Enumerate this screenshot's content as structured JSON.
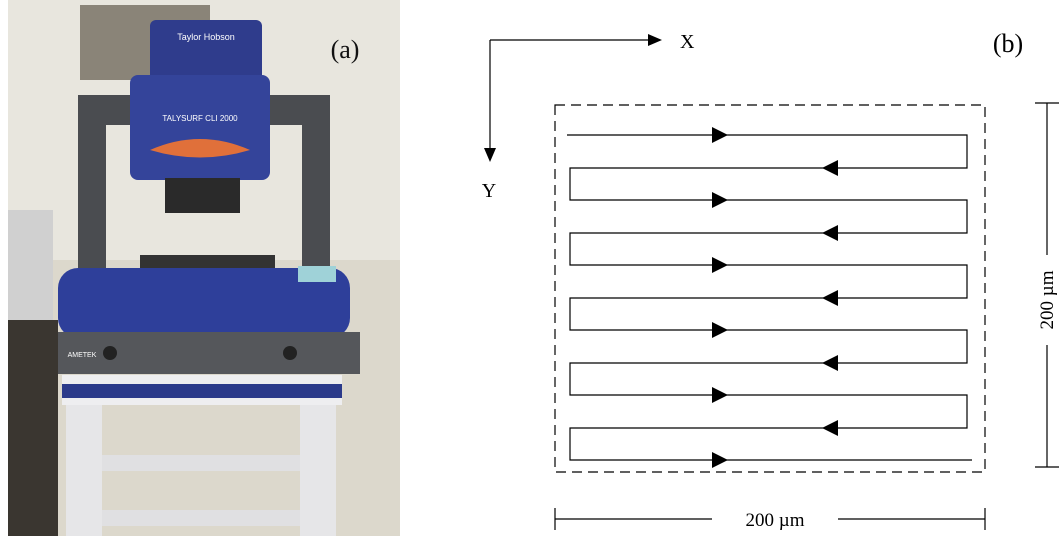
{
  "panel_a": {
    "label": "(a)",
    "brand": "Taylor Hobson",
    "model": "TALYSURF CLI 2000",
    "maker": "AMETEK"
  },
  "panel_b": {
    "label": "(b)",
    "x_axis": "X",
    "y_axis": "Y",
    "width_label": "200 µm",
    "height_label": "200 µm"
  }
}
